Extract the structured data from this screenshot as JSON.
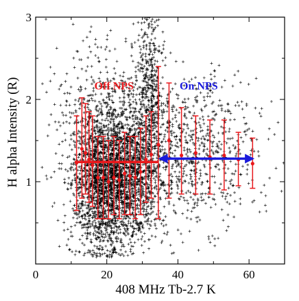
{
  "chart_data": {
    "type": "scatter",
    "xlabel": "408 MHz  Tb-2.7 K",
    "ylabel": "H alpha Intensity (R)",
    "xlim": [
      0,
      70
    ],
    "ylim": [
      0,
      3
    ],
    "x_ticks": [
      "0",
      "20",
      "40",
      "60"
    ],
    "y_ticks": [
      "1",
      "2",
      "3"
    ],
    "grid": false,
    "annotations": [
      {
        "text": "Off NPS",
        "color": "#e8191c"
      },
      {
        "text": "On NPS",
        "color": "#1a1adb"
      }
    ],
    "scatter_cloud": {
      "marker": "+",
      "color": "#000000",
      "clusters": [
        {
          "x_center": 18,
          "x_spread": 4,
          "y_center": 1.0,
          "y_spread": 0.45,
          "count": 1500
        },
        {
          "x_center": 26,
          "x_spread": 5,
          "y_center": 1.1,
          "y_spread": 0.42,
          "count": 1500
        },
        {
          "x_center": 32,
          "x_spread": 2,
          "y_center": 2.2,
          "y_spread": 0.6,
          "count": 450
        },
        {
          "x_center": 44,
          "x_spread": 9,
          "y_center": 1.35,
          "y_spread": 0.45,
          "count": 750
        },
        {
          "x_center": 20,
          "x_spread": 9,
          "y_center": 1.9,
          "y_spread": 0.55,
          "count": 350
        }
      ]
    },
    "series": [
      {
        "name": "Off NPS",
        "color": "#e8191c",
        "points": [
          {
            "x": 11.5,
            "y": 1.23,
            "ylo": 0.65,
            "yhi": 1.8
          },
          {
            "x": 13.0,
            "y": 1.4,
            "ylo": 0.8,
            "yhi": 2.02
          },
          {
            "x": 14.0,
            "y": 1.35,
            "ylo": 0.85,
            "yhi": 1.95
          },
          {
            "x": 15.0,
            "y": 1.27,
            "ylo": 0.75,
            "yhi": 1.85
          },
          {
            "x": 16.0,
            "y": 1.2,
            "ylo": 0.7,
            "yhi": 1.8
          },
          {
            "x": 17.5,
            "y": 1.05,
            "ylo": 0.55,
            "yhi": 1.55
          },
          {
            "x": 19.0,
            "y": 1.05,
            "ylo": 0.55,
            "yhi": 1.55
          },
          {
            "x": 20.5,
            "y": 1.0,
            "ylo": 0.55,
            "yhi": 1.5
          },
          {
            "x": 22.0,
            "y": 1.05,
            "ylo": 0.6,
            "yhi": 1.55
          },
          {
            "x": 23.5,
            "y": 1.02,
            "ylo": 0.55,
            "yhi": 1.5
          },
          {
            "x": 25.0,
            "y": 1.1,
            "ylo": 0.6,
            "yhi": 1.6
          },
          {
            "x": 26.5,
            "y": 1.07,
            "ylo": 0.6,
            "yhi": 1.55
          },
          {
            "x": 28.0,
            "y": 1.05,
            "ylo": 0.55,
            "yhi": 1.55
          },
          {
            "x": 29.5,
            "y": 1.12,
            "ylo": 0.6,
            "yhi": 1.65
          },
          {
            "x": 31.0,
            "y": 1.27,
            "ylo": 0.75,
            "yhi": 1.8
          },
          {
            "x": 32.5,
            "y": 1.33,
            "ylo": 0.8,
            "yhi": 1.85
          },
          {
            "x": 34.5,
            "y": 1.45,
            "ylo": 0.55,
            "yhi": 2.4
          },
          {
            "x": 37.5,
            "y": 1.5,
            "ylo": 0.8,
            "yhi": 2.2
          }
        ],
        "mean_line": {
          "x_from": 11,
          "x_to": 34.5,
          "y": 1.24
        }
      },
      {
        "name": "On NPS",
        "color": "#1a1adb",
        "points": [
          {
            "x": 41,
            "y": 1.32,
            "ylo": 0.85,
            "yhi": 1.9
          },
          {
            "x": 45,
            "y": 1.35,
            "ylo": 0.85,
            "yhi": 1.8
          },
          {
            "x": 49,
            "y": 1.3,
            "ylo": 0.85,
            "yhi": 1.75
          },
          {
            "x": 53,
            "y": 1.32,
            "ylo": 0.9,
            "yhi": 1.75
          },
          {
            "x": 57,
            "y": 1.27,
            "ylo": 0.95,
            "yhi": 1.6
          },
          {
            "x": 61,
            "y": 1.22,
            "ylo": 0.92,
            "yhi": 1.53
          }
        ],
        "point_color": "#e8191c",
        "mean_line": {
          "x_from": 35,
          "x_to": 61,
          "y": 1.28,
          "arrows": "both"
        }
      }
    ]
  }
}
